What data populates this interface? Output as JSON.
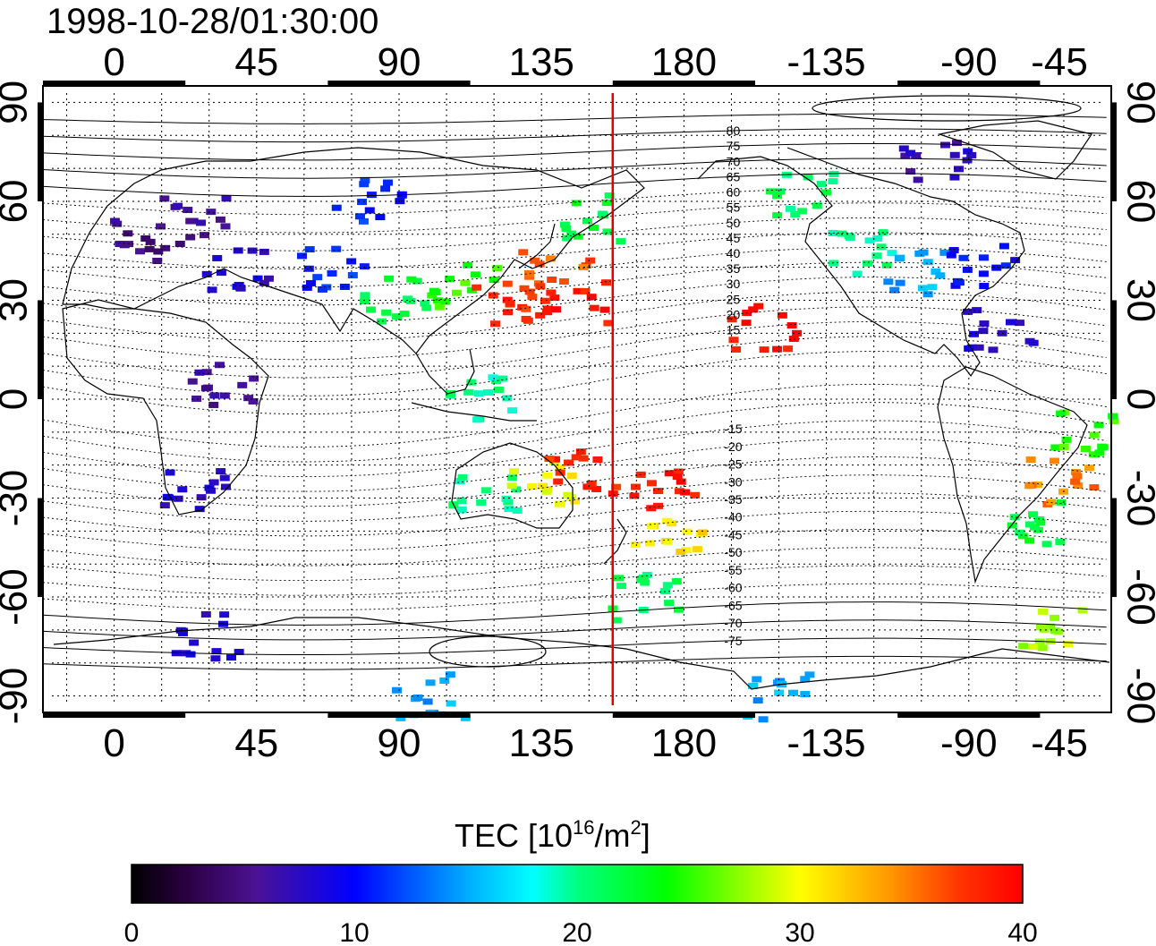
{
  "title": "1998-10-28/01:30:00",
  "colorbar": {
    "label_main": "TEC  [10",
    "label_sup1": "16",
    "label_mid": "/m",
    "label_sup2": "2",
    "label_end": "]",
    "ticks": [
      "0",
      "10",
      "20",
      "30",
      "40"
    ],
    "range": [
      0,
      40
    ]
  },
  "map": {
    "top_lon_ticks": [
      "0",
      "45",
      "90",
      "135",
      "180",
      "-135",
      "-90",
      "-45"
    ],
    "bottom_lon_ticks": [
      "0",
      "45",
      "90",
      "135",
      "180",
      "-135",
      "-90",
      "-45"
    ],
    "left_lat_ticks": [
      "90",
      "60",
      "30",
      "0",
      "-30",
      "-60",
      "-90"
    ],
    "right_lat_ticks": [
      "90",
      "60",
      "30",
      "0",
      "-30",
      "-60",
      "-90"
    ],
    "contour_labels": [
      "80",
      "75",
      "70",
      "65",
      "60",
      "55",
      "50",
      "45",
      "40",
      "35",
      "30",
      "25",
      "20",
      "15",
      "-15",
      "-20",
      "-25",
      "-30",
      "-35",
      "-40",
      "-45",
      "-50",
      "-55",
      "-60",
      "-65",
      "-70",
      "-75"
    ],
    "midnight_meridian_lon": 157.5
  },
  "chart_data": {
    "type": "heatmap",
    "variable": "TEC",
    "units": "10^16/m^2",
    "color_range": [
      0,
      40
    ],
    "x_range_lon": [
      -22.5,
      315
    ],
    "y_range_lat": [
      -95,
      95
    ],
    "regions": [
      {
        "lon": 10,
        "lat": 48,
        "tec": 5
      },
      {
        "lon": 25,
        "lat": 55,
        "tec": 6
      },
      {
        "lon": 40,
        "lat": 40,
        "tec": 8
      },
      {
        "lon": 70,
        "lat": 40,
        "tec": 11
      },
      {
        "lon": 80,
        "lat": 60,
        "tec": 11
      },
      {
        "lon": 35,
        "lat": 5,
        "tec": 6
      },
      {
        "lon": 25,
        "lat": -28,
        "tec": 8
      },
      {
        "lon": 90,
        "lat": 30,
        "tec": 22
      },
      {
        "lon": 110,
        "lat": 35,
        "tec": 25
      },
      {
        "lon": 125,
        "lat": 30,
        "tec": 38
      },
      {
        "lon": 140,
        "lat": 38,
        "tec": 36
      },
      {
        "lon": 145,
        "lat": 30,
        "tec": 39
      },
      {
        "lon": 150,
        "lat": 55,
        "tec": 22
      },
      {
        "lon": 115,
        "lat": 0,
        "tec": 20
      },
      {
        "lon": 118,
        "lat": -28,
        "tec": 20
      },
      {
        "lon": 135,
        "lat": -25,
        "tec": 30
      },
      {
        "lon": 148,
        "lat": -22,
        "tec": 38
      },
      {
        "lon": 175,
        "lat": -40,
        "tec": 31
      },
      {
        "lon": 175,
        "lat": -28,
        "tec": 39
      },
      {
        "lon": 168,
        "lat": -60,
        "tec": 21
      },
      {
        "lon": 205,
        "lat": 22,
        "tec": 39
      },
      {
        "lon": 218,
        "lat": 62,
        "tec": 21
      },
      {
        "lon": 235,
        "lat": 45,
        "tec": 20
      },
      {
        "lon": 255,
        "lat": 38,
        "tec": 15
      },
      {
        "lon": 275,
        "lat": 40,
        "tec": 10
      },
      {
        "lon": 260,
        "lat": 72,
        "tec": 7
      },
      {
        "lon": 280,
        "lat": 22,
        "tec": 8
      },
      {
        "lon": 305,
        "lat": -10,
        "tec": 25
      },
      {
        "lon": 300,
        "lat": -25,
        "tec": 35
      },
      {
        "lon": 292,
        "lat": -38,
        "tec": 22
      },
      {
        "lon": 295,
        "lat": -70,
        "tec": 28
      },
      {
        "lon": 30,
        "lat": -72,
        "tec": 8
      },
      {
        "lon": 100,
        "lat": -90,
        "tec": 15
      },
      {
        "lon": 210,
        "lat": -90,
        "tec": 15
      }
    ]
  }
}
